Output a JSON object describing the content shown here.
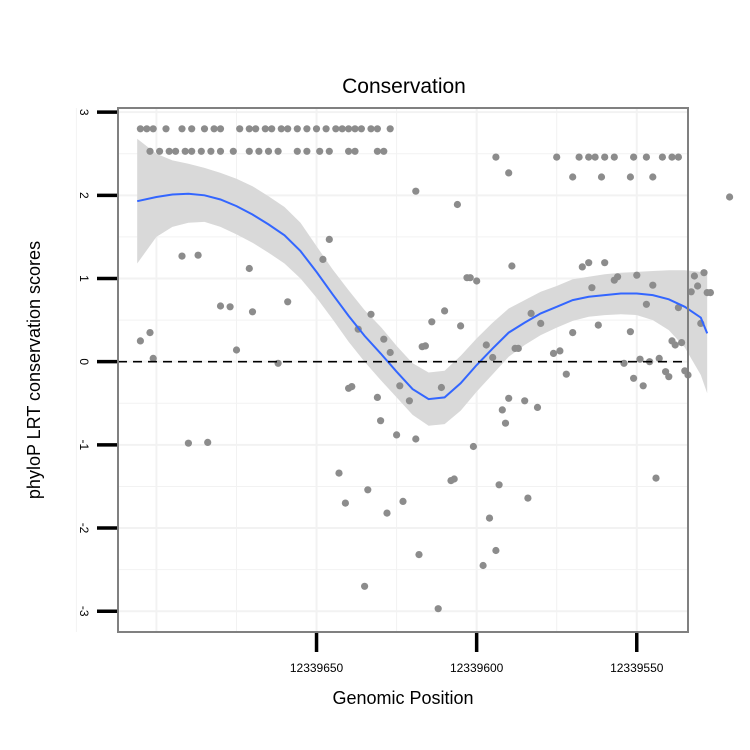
{
  "chart_data": {
    "type": "scatter",
    "title": "Conservation",
    "xlabel": "Genomic Position",
    "ylabel": "phyloP LRT conservation scores",
    "xlim": [
      12339712,
      12339534
    ],
    "ylim": [
      -3.25,
      3.05
    ],
    "x_reversed": true,
    "xticks": [
      12339650,
      12339600,
      12339550
    ],
    "xtick_labels": [
      "12339650",
      "12339600",
      "12339550"
    ],
    "yticks": [
      -3,
      -2,
      -1,
      0,
      1,
      2,
      3
    ],
    "ytick_labels": [
      "-3",
      "-2",
      "-1",
      "0",
      "1",
      "2",
      "3"
    ],
    "reference_line": {
      "y": 0,
      "style": "dashed",
      "color": "#000000"
    },
    "colors": {
      "points": "#8c8c8c",
      "smooth_line": "#3366ff",
      "ribbon": "#d9d9d9",
      "panel_border": "#808080",
      "grid": "#f2f2f2"
    },
    "points": [
      {
        "x": 12339705,
        "y": 2.8
      },
      {
        "x": 12339703,
        "y": 2.8
      },
      {
        "x": 12339701,
        "y": 2.8
      },
      {
        "x": 12339697,
        "y": 2.8
      },
      {
        "x": 12339692,
        "y": 2.8
      },
      {
        "x": 12339689,
        "y": 2.8
      },
      {
        "x": 12339685,
        "y": 2.8
      },
      {
        "x": 12339682,
        "y": 2.8
      },
      {
        "x": 12339680,
        "y": 2.8
      },
      {
        "x": 12339674,
        "y": 2.8
      },
      {
        "x": 12339671,
        "y": 2.8
      },
      {
        "x": 12339669,
        "y": 2.8
      },
      {
        "x": 12339666,
        "y": 2.8
      },
      {
        "x": 12339664,
        "y": 2.8
      },
      {
        "x": 12339661,
        "y": 2.8
      },
      {
        "x": 12339659,
        "y": 2.8
      },
      {
        "x": 12339656,
        "y": 2.8
      },
      {
        "x": 12339653,
        "y": 2.8
      },
      {
        "x": 12339650,
        "y": 2.8
      },
      {
        "x": 12339647,
        "y": 2.8
      },
      {
        "x": 12339644,
        "y": 2.8
      },
      {
        "x": 12339642,
        "y": 2.8
      },
      {
        "x": 12339640,
        "y": 2.8
      },
      {
        "x": 12339638,
        "y": 2.8
      },
      {
        "x": 12339636,
        "y": 2.8
      },
      {
        "x": 12339633,
        "y": 2.8
      },
      {
        "x": 12339631,
        "y": 2.8
      },
      {
        "x": 12339627,
        "y": 2.8
      },
      {
        "x": 12339702,
        "y": 2.53
      },
      {
        "x": 12339699,
        "y": 2.53
      },
      {
        "x": 12339696,
        "y": 2.53
      },
      {
        "x": 12339694,
        "y": 2.53
      },
      {
        "x": 12339691,
        "y": 2.53
      },
      {
        "x": 12339689,
        "y": 2.53
      },
      {
        "x": 12339686,
        "y": 2.53
      },
      {
        "x": 12339683,
        "y": 2.53
      },
      {
        "x": 12339680,
        "y": 2.53
      },
      {
        "x": 12339676,
        "y": 2.53
      },
      {
        "x": 12339671,
        "y": 2.53
      },
      {
        "x": 12339668,
        "y": 2.53
      },
      {
        "x": 12339665,
        "y": 2.53
      },
      {
        "x": 12339662,
        "y": 2.53
      },
      {
        "x": 12339656,
        "y": 2.53
      },
      {
        "x": 12339653,
        "y": 2.53
      },
      {
        "x": 12339649,
        "y": 2.53
      },
      {
        "x": 12339646,
        "y": 2.53
      },
      {
        "x": 12339640,
        "y": 2.53
      },
      {
        "x": 12339638,
        "y": 2.53
      },
      {
        "x": 12339631,
        "y": 2.53
      },
      {
        "x": 12339629,
        "y": 2.53
      },
      {
        "x": 12339594,
        "y": 2.46
      },
      {
        "x": 12339575,
        "y": 2.46
      },
      {
        "x": 12339568,
        "y": 2.46
      },
      {
        "x": 12339565,
        "y": 2.46
      },
      {
        "x": 12339563,
        "y": 2.46
      },
      {
        "x": 12339560,
        "y": 2.46
      },
      {
        "x": 12339557,
        "y": 2.46
      },
      {
        "x": 12339551,
        "y": 2.46
      },
      {
        "x": 12339547,
        "y": 2.46
      },
      {
        "x": 12339542,
        "y": 2.46
      },
      {
        "x": 12339539,
        "y": 2.46
      },
      {
        "x": 12339537,
        "y": 2.46
      },
      {
        "x": 12339570,
        "y": 2.22
      },
      {
        "x": 12339561,
        "y": 2.22
      },
      {
        "x": 12339552,
        "y": 2.22
      },
      {
        "x": 12339545,
        "y": 2.22
      },
      {
        "x": 12339590,
        "y": 2.27
      },
      {
        "x": 12339619,
        "y": 2.05
      },
      {
        "x": 12339606,
        "y": 1.89
      },
      {
        "x": 12339521,
        "y": 1.98
      },
      {
        "x": 12339705,
        "y": 0.25
      },
      {
        "x": 12339702,
        "y": 0.35
      },
      {
        "x": 12339701,
        "y": 0.04
      },
      {
        "x": 12339692,
        "y": 1.27
      },
      {
        "x": 12339690,
        "y": -0.98
      },
      {
        "x": 12339687,
        "y": 1.28
      },
      {
        "x": 12339684,
        "y": -0.97
      },
      {
        "x": 12339680,
        "y": 0.67
      },
      {
        "x": 12339677,
        "y": 0.66
      },
      {
        "x": 12339675,
        "y": 0.14
      },
      {
        "x": 12339671,
        "y": 1.12
      },
      {
        "x": 12339670,
        "y": 0.6
      },
      {
        "x": 12339662,
        "y": -0.02
      },
      {
        "x": 12339659,
        "y": 0.72
      },
      {
        "x": 12339648,
        "y": 1.23
      },
      {
        "x": 12339646,
        "y": 1.47
      },
      {
        "x": 12339643,
        "y": -1.34
      },
      {
        "x": 12339641,
        "y": -1.7
      },
      {
        "x": 12339640,
        "y": -0.32
      },
      {
        "x": 12339639,
        "y": -0.3
      },
      {
        "x": 12339637,
        "y": 0.39
      },
      {
        "x": 12339635,
        "y": -2.7
      },
      {
        "x": 12339634,
        "y": -1.54
      },
      {
        "x": 12339633,
        "y": 0.57
      },
      {
        "x": 12339631,
        "y": -0.43
      },
      {
        "x": 12339630,
        "y": -0.71
      },
      {
        "x": 12339629,
        "y": 0.27
      },
      {
        "x": 12339628,
        "y": -1.82
      },
      {
        "x": 12339627,
        "y": 0.11
      },
      {
        "x": 12339625,
        "y": -0.88
      },
      {
        "x": 12339624,
        "y": -0.29
      },
      {
        "x": 12339623,
        "y": -1.68
      },
      {
        "x": 12339621,
        "y": -0.47
      },
      {
        "x": 12339619,
        "y": -0.93
      },
      {
        "x": 12339618,
        "y": -2.32
      },
      {
        "x": 12339617,
        "y": 0.18
      },
      {
        "x": 12339616,
        "y": 0.19
      },
      {
        "x": 12339614,
        "y": 0.48
      },
      {
        "x": 12339612,
        "y": -2.97
      },
      {
        "x": 12339611,
        "y": -0.31
      },
      {
        "x": 12339610,
        "y": 0.61
      },
      {
        "x": 12339608,
        "y": -1.43
      },
      {
        "x": 12339607,
        "y": -1.41
      },
      {
        "x": 12339605,
        "y": 0.43
      },
      {
        "x": 12339603,
        "y": 1.01
      },
      {
        "x": 12339602,
        "y": 1.01
      },
      {
        "x": 12339601,
        "y": -1.02
      },
      {
        "x": 12339600,
        "y": 0.97
      },
      {
        "x": 12339598,
        "y": -2.45
      },
      {
        "x": 12339597,
        "y": 0.2
      },
      {
        "x": 12339596,
        "y": -1.88
      },
      {
        "x": 12339595,
        "y": 0.05
      },
      {
        "x": 12339594,
        "y": -2.27
      },
      {
        "x": 12339593,
        "y": -1.48
      },
      {
        "x": 12339592,
        "y": -0.58
      },
      {
        "x": 12339591,
        "y": -0.74
      },
      {
        "x": 12339590,
        "y": -0.44
      },
      {
        "x": 12339589,
        "y": 1.15
      },
      {
        "x": 12339588,
        "y": 0.16
      },
      {
        "x": 12339587,
        "y": 0.16
      },
      {
        "x": 12339585,
        "y": -0.47
      },
      {
        "x": 12339584,
        "y": -1.64
      },
      {
        "x": 12339583,
        "y": 0.58
      },
      {
        "x": 12339581,
        "y": -0.55
      },
      {
        "x": 12339580,
        "y": 0.46
      },
      {
        "x": 12339576,
        "y": 0.1
      },
      {
        "x": 12339574,
        "y": 0.13
      },
      {
        "x": 12339572,
        "y": -0.15
      },
      {
        "x": 12339570,
        "y": 0.35
      },
      {
        "x": 12339567,
        "y": 1.14
      },
      {
        "x": 12339565,
        "y": 1.19
      },
      {
        "x": 12339564,
        "y": 0.89
      },
      {
        "x": 12339562,
        "y": 0.44
      },
      {
        "x": 12339560,
        "y": 1.19
      },
      {
        "x": 12339557,
        "y": 0.98
      },
      {
        "x": 12339556,
        "y": 1.02
      },
      {
        "x": 12339554,
        "y": -0.02
      },
      {
        "x": 12339552,
        "y": 0.36
      },
      {
        "x": 12339551,
        "y": -0.2
      },
      {
        "x": 12339550,
        "y": 1.04
      },
      {
        "x": 12339549,
        "y": 0.03
      },
      {
        "x": 12339548,
        "y": -0.29
      },
      {
        "x": 12339547,
        "y": 0.69
      },
      {
        "x": 12339546,
        "y": 0.0
      },
      {
        "x": 12339545,
        "y": 0.92
      },
      {
        "x": 12339544,
        "y": -1.4
      },
      {
        "x": 12339543,
        "y": 0.04
      },
      {
        "x": 12339541,
        "y": -0.12
      },
      {
        "x": 12339540,
        "y": -0.18
      },
      {
        "x": 12339539,
        "y": 0.25
      },
      {
        "x": 12339538,
        "y": 0.2
      },
      {
        "x": 12339537,
        "y": 0.65
      },
      {
        "x": 12339536,
        "y": 0.23
      },
      {
        "x": 12339535,
        "y": -0.11
      },
      {
        "x": 12339534,
        "y": -0.16
      },
      {
        "x": 12339533,
        "y": 0.84
      },
      {
        "x": 12339532,
        "y": 1.03
      },
      {
        "x": 12339531,
        "y": 0.91
      },
      {
        "x": 12339530,
        "y": 0.46
      },
      {
        "x": 12339529,
        "y": 1.07
      },
      {
        "x": 12339528,
        "y": 0.83
      },
      {
        "x": 12339527,
        "y": 0.83
      }
    ],
    "smooth": {
      "x": [
        12339706,
        12339700,
        12339695,
        12339690,
        12339685,
        12339680,
        12339675,
        12339670,
        12339665,
        12339660,
        12339655,
        12339650,
        12339645,
        12339640,
        12339635,
        12339630,
        12339625,
        12339620,
        12339615,
        12339610,
        12339605,
        12339600,
        12339595,
        12339590,
        12339585,
        12339580,
        12339575,
        12339570,
        12339565,
        12339560,
        12339555,
        12339550,
        12339545,
        12339540,
        12339535,
        12339530,
        12339528
      ],
      "y": [
        1.93,
        1.98,
        2.01,
        2.02,
        2.0,
        1.95,
        1.87,
        1.77,
        1.65,
        1.52,
        1.33,
        1.08,
        0.81,
        0.55,
        0.31,
        0.1,
        -0.12,
        -0.33,
        -0.45,
        -0.43,
        -0.26,
        -0.04,
        0.16,
        0.35,
        0.47,
        0.58,
        0.66,
        0.74,
        0.78,
        0.8,
        0.82,
        0.82,
        0.8,
        0.75,
        0.66,
        0.53,
        0.34
      ],
      "lower": [
        1.18,
        1.5,
        1.62,
        1.67,
        1.68,
        1.62,
        1.53,
        1.43,
        1.31,
        1.18,
        1.0,
        0.77,
        0.51,
        0.24,
        0.0,
        -0.22,
        -0.43,
        -0.64,
        -0.77,
        -0.75,
        -0.59,
        -0.36,
        -0.15,
        0.06,
        0.2,
        0.32,
        0.41,
        0.49,
        0.54,
        0.56,
        0.57,
        0.56,
        0.5,
        0.38,
        0.17,
        -0.16,
        -0.38
      ],
      "upper": [
        2.68,
        2.5,
        2.42,
        2.38,
        2.33,
        2.27,
        2.2,
        2.11,
        1.99,
        1.86,
        1.67,
        1.39,
        1.11,
        0.86,
        0.62,
        0.42,
        0.19,
        -0.02,
        -0.13,
        -0.11,
        0.07,
        0.28,
        0.47,
        0.64,
        0.74,
        0.84,
        0.91,
        0.99,
        1.02,
        1.05,
        1.07,
        1.08,
        1.09,
        1.1,
        1.1,
        1.08,
        1.06
      ]
    }
  }
}
